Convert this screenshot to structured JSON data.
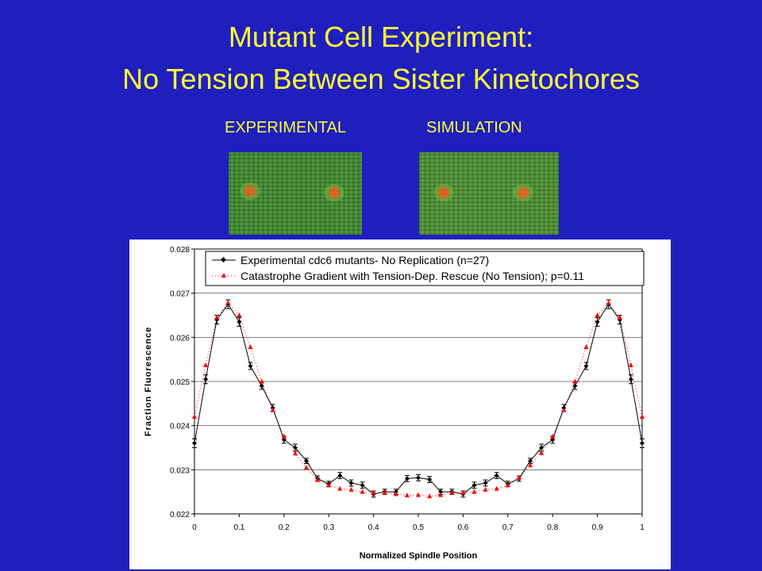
{
  "slide": {
    "title_line1": "Mutant Cell Experiment:",
    "title_line2": "No Tension Between Sister Kinetochores",
    "label_experimental": "EXPERIMENTAL",
    "label_simulation": "SIMULATION"
  },
  "colors": {
    "background": "#1f1fbf",
    "title": "#ffff33",
    "experimental_series": "#000000",
    "simulation_series": "#ff0000"
  },
  "chart_data": {
    "type": "line",
    "xlabel": "Normalized Spindle Position",
    "ylabel": "Fraction Fluorescence",
    "xlim": [
      0,
      1
    ],
    "ylim": [
      0.022,
      0.028
    ],
    "x_ticks": [
      "0",
      "0.1",
      "0.2",
      "0.3",
      "0.4",
      "0.5",
      "0.6",
      "0.7",
      "0.8",
      "0.9",
      "1"
    ],
    "y_ticks": [
      "0.022",
      "0.023",
      "0.024",
      "0.025",
      "0.026",
      "0.027",
      "0.028"
    ],
    "legend_position": "top",
    "x": [
      0,
      0.025,
      0.05,
      0.075,
      0.1,
      0.125,
      0.15,
      0.175,
      0.2,
      0.225,
      0.25,
      0.275,
      0.3,
      0.325,
      0.35,
      0.375,
      0.4,
      0.425,
      0.45,
      0.475,
      0.5,
      0.525,
      0.55,
      0.575,
      0.6,
      0.625,
      0.65,
      0.675,
      0.7,
      0.725,
      0.75,
      0.775,
      0.8,
      0.825,
      0.85,
      0.875,
      0.9,
      0.925,
      0.95,
      0.975,
      1
    ],
    "series": [
      {
        "name": "Experimental cdc6 mutants- No Replication (n=27)",
        "style": "black line with diamond markers and error bars",
        "values": [
          0.0236,
          0.02505,
          0.0264,
          0.02675,
          0.02635,
          0.02535,
          0.0249,
          0.0244,
          0.02368,
          0.0235,
          0.0232,
          0.0228,
          0.02268,
          0.02287,
          0.0227,
          0.02265,
          0.02245,
          0.0225,
          0.0225,
          0.0228,
          0.02282,
          0.02278,
          0.0225,
          0.0225,
          0.02245,
          0.02265,
          0.0227,
          0.02287,
          0.02268,
          0.0228,
          0.0232,
          0.0235,
          0.02368,
          0.0244,
          0.0249,
          0.02535,
          0.02635,
          0.02675,
          0.0264,
          0.02505,
          0.0236
        ],
        "error": [
          0.0001,
          0.0001,
          0.0001,
          0.0001,
          0.0001,
          8e-05,
          8e-05,
          8e-05,
          8e-05,
          8e-05,
          6e-05,
          6e-05,
          6e-05,
          7e-05,
          7e-05,
          7e-05,
          7e-05,
          6e-05,
          6e-05,
          7e-05,
          7e-05,
          7e-05,
          6e-05,
          6e-05,
          7e-05,
          7e-05,
          7e-05,
          7e-05,
          6e-05,
          6e-05,
          6e-05,
          8e-05,
          8e-05,
          8e-05,
          8e-05,
          8e-05,
          0.0001,
          0.0001,
          0.0001,
          0.0001,
          0.0001
        ]
      },
      {
        "name": "Catastrophe Gradient with Tension-Dep. Rescue  (No Tension);  p=0.11",
        "style": "red dotted line with triangle markers",
        "values": [
          0.0242,
          0.02537,
          0.02645,
          0.02678,
          0.0265,
          0.02578,
          0.025,
          0.02435,
          0.02375,
          0.02337,
          0.02305,
          0.02277,
          0.02265,
          0.02257,
          0.02255,
          0.0225,
          0.02248,
          0.02248,
          0.02245,
          0.02242,
          0.02243,
          0.0224,
          0.02243,
          0.02248,
          0.02248,
          0.0225,
          0.02255,
          0.02257,
          0.02265,
          0.02282,
          0.0231,
          0.02338,
          0.02375,
          0.02435,
          0.025,
          0.02578,
          0.0265,
          0.02678,
          0.02645,
          0.02537,
          0.0242
        ]
      }
    ]
  }
}
